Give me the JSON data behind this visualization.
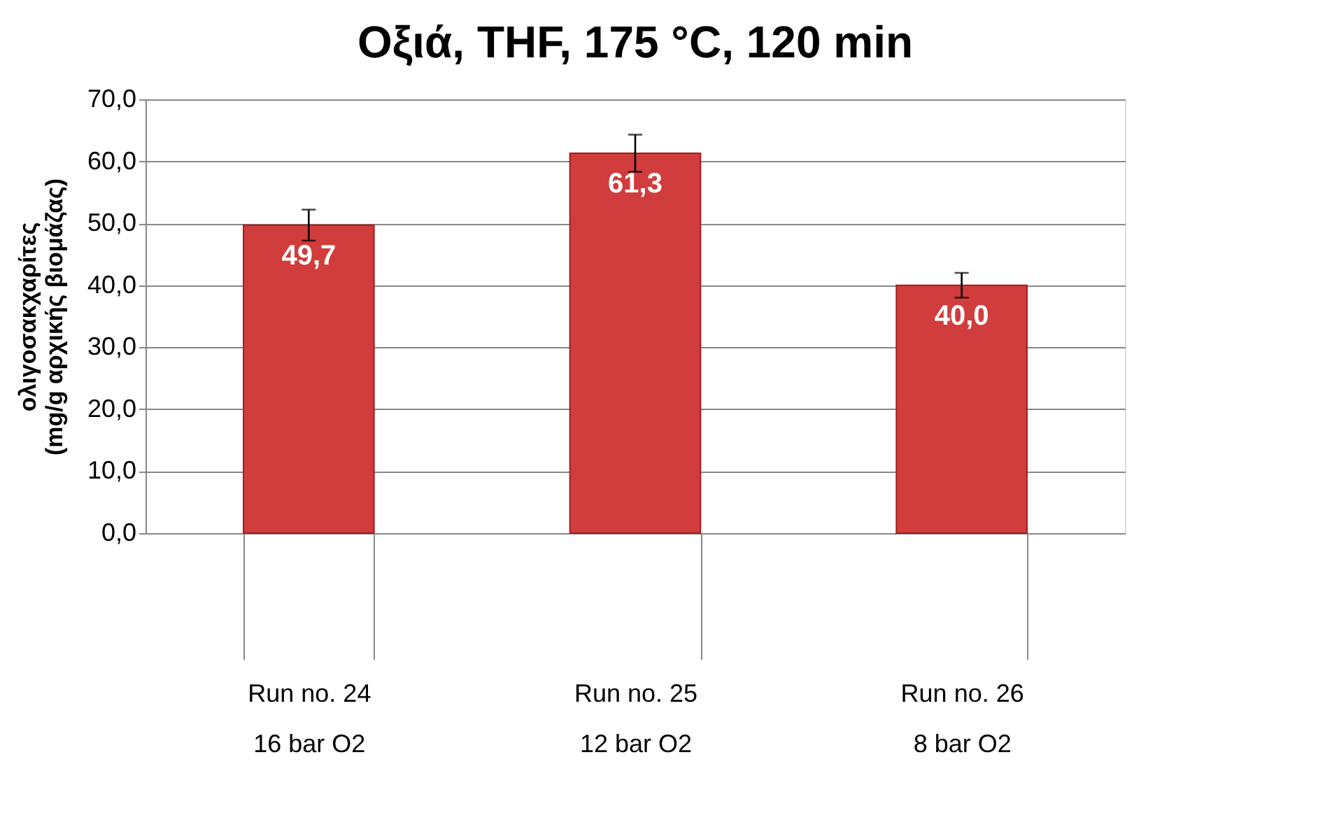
{
  "chart_data": {
    "type": "bar",
    "title": "Οξιά, THF, 175 °C, 120 min",
    "ylabel": "ολιγοσακχαρίτες\n(mg/g αρχικής βιομάζας)",
    "categories": [
      "Run no. 24\n16 bar O2",
      "Run no. 25\n12 bar O2",
      "Run no. 26\n8 bar O2"
    ],
    "values": [
      49.7,
      61.3,
      40.0
    ],
    "errors": [
      2.5,
      3.0,
      2.0
    ],
    "value_labels": [
      "49,7",
      "61,3",
      "40,0"
    ],
    "color": "#d13c3c",
    "ylim": [
      0,
      70
    ],
    "yticks": [
      {
        "value": 0,
        "label": "0,0"
      },
      {
        "value": 10,
        "label": "10,0"
      },
      {
        "value": 20,
        "label": "20,0"
      },
      {
        "value": 30,
        "label": "30,0"
      },
      {
        "value": 40,
        "label": "40,0"
      },
      {
        "value": 50,
        "label": "50,0"
      },
      {
        "value": 60,
        "label": "60,0"
      },
      {
        "value": 70,
        "label": "70,0"
      }
    ],
    "grid": "y"
  }
}
